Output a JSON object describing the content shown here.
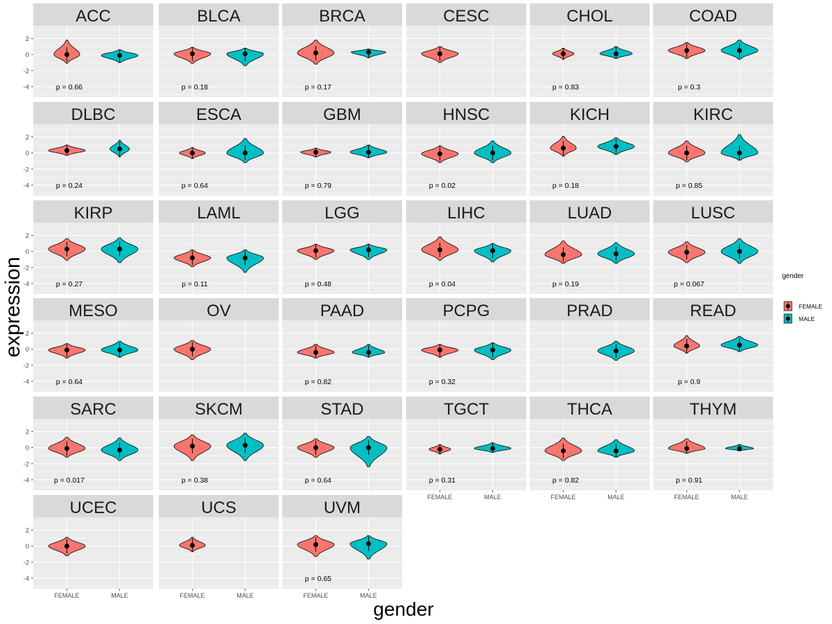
{
  "chart_data": {
    "type": "violin",
    "xlabel": "gender",
    "ylabel": "expression",
    "x_categories": [
      "FEMALE",
      "MALE"
    ],
    "y_ticks": [
      2,
      0,
      -2,
      -4
    ],
    "ylim": [
      -5.3,
      3.6
    ],
    "legend": {
      "title": "gender",
      "position": "right",
      "entries": [
        {
          "label": "FEMALE",
          "color": "#F8766D"
        },
        {
          "label": "MALE",
          "color": "#00BFC4"
        }
      ]
    },
    "colors": {
      "panel": "#EBEBEB",
      "strip": "#D9D9D9",
      "grid": "#FFFFFF",
      "point": "#000000",
      "outline": "#000000"
    },
    "panels": [
      {
        "name": "ACC",
        "p": "0.66",
        "groups": [
          {
            "g": "FEMALE",
            "median": 0.0,
            "min": -1.1,
            "max": 1.8,
            "w": 0.6
          },
          {
            "g": "MALE",
            "median": -0.1,
            "min": -1.0,
            "max": 0.6,
            "w": 0.85
          }
        ]
      },
      {
        "name": "BLCA",
        "p": "0.18",
        "groups": [
          {
            "g": "FEMALE",
            "median": 0.1,
            "min": -1.1,
            "max": 0.9,
            "w": 0.85
          },
          {
            "g": "MALE",
            "median": 0.1,
            "min": -1.4,
            "max": 0.8,
            "w": 0.85
          }
        ]
      },
      {
        "name": "BRCA",
        "p": "0.17",
        "groups": [
          {
            "g": "FEMALE",
            "median": 0.2,
            "min": -1.2,
            "max": 1.8,
            "w": 0.85
          },
          {
            "g": "MALE",
            "median": 0.3,
            "min": -0.4,
            "max": 0.7,
            "w": 0.8
          }
        ]
      },
      {
        "name": "CESC",
        "p": "",
        "groups": [
          {
            "g": "FEMALE",
            "median": 0.1,
            "min": -1.0,
            "max": 1.0,
            "w": 0.85
          }
        ]
      },
      {
        "name": "CHOL",
        "p": "0.83",
        "groups": [
          {
            "g": "FEMALE",
            "median": 0.1,
            "min": -0.6,
            "max": 0.8,
            "w": 0.5
          },
          {
            "g": "MALE",
            "median": 0.1,
            "min": -0.5,
            "max": 1.0,
            "w": 0.75
          }
        ]
      },
      {
        "name": "COAD",
        "p": "0.3",
        "groups": [
          {
            "g": "FEMALE",
            "median": 0.5,
            "min": -0.5,
            "max": 1.5,
            "w": 0.85
          },
          {
            "g": "MALE",
            "median": 0.5,
            "min": -0.6,
            "max": 1.8,
            "w": 0.85
          }
        ]
      },
      {
        "name": "DLBC",
        "p": "0.24",
        "groups": [
          {
            "g": "FEMALE",
            "median": 0.3,
            "min": -0.3,
            "max": 1.0,
            "w": 0.85
          },
          {
            "g": "MALE",
            "median": 0.5,
            "min": -0.5,
            "max": 1.6,
            "w": 0.45
          }
        ]
      },
      {
        "name": "ESCA",
        "p": "0.64",
        "groups": [
          {
            "g": "FEMALE",
            "median": 0.0,
            "min": -0.7,
            "max": 0.7,
            "w": 0.6
          },
          {
            "g": "MALE",
            "median": 0.0,
            "min": -1.2,
            "max": 1.8,
            "w": 0.85
          }
        ]
      },
      {
        "name": "GBM",
        "p": "0.79",
        "groups": [
          {
            "g": "FEMALE",
            "median": 0.1,
            "min": -0.5,
            "max": 0.6,
            "w": 0.7
          },
          {
            "g": "MALE",
            "median": 0.1,
            "min": -0.6,
            "max": 1.0,
            "w": 0.85
          }
        ]
      },
      {
        "name": "HNSC",
        "p": "0.02",
        "groups": [
          {
            "g": "FEMALE",
            "median": -0.1,
            "min": -1.2,
            "max": 0.9,
            "w": 0.85
          },
          {
            "g": "MALE",
            "median": 0.0,
            "min": -1.2,
            "max": 1.5,
            "w": 0.85
          }
        ]
      },
      {
        "name": "KICH",
        "p": "0.18",
        "groups": [
          {
            "g": "FEMALE",
            "median": 0.6,
            "min": -0.4,
            "max": 2.1,
            "w": 0.6
          },
          {
            "g": "MALE",
            "median": 0.8,
            "min": -0.2,
            "max": 1.9,
            "w": 0.85
          }
        ]
      },
      {
        "name": "KIRC",
        "p": "0.85",
        "groups": [
          {
            "g": "FEMALE",
            "median": 0.0,
            "min": -1.1,
            "max": 1.5,
            "w": 0.85
          },
          {
            "g": "MALE",
            "median": 0.0,
            "min": -0.9,
            "max": 2.3,
            "w": 0.85
          }
        ]
      },
      {
        "name": "KIRP",
        "p": "0.27",
        "groups": [
          {
            "g": "FEMALE",
            "median": 0.3,
            "min": -1.1,
            "max": 1.6,
            "w": 0.85
          },
          {
            "g": "MALE",
            "median": 0.3,
            "min": -1.4,
            "max": 1.7,
            "w": 0.85
          }
        ]
      },
      {
        "name": "LAML",
        "p": "0.11",
        "groups": [
          {
            "g": "FEMALE",
            "median": -0.8,
            "min": -1.9,
            "max": 0.2,
            "w": 0.85
          },
          {
            "g": "MALE",
            "median": -0.8,
            "min": -2.6,
            "max": 0.2,
            "w": 0.85
          }
        ]
      },
      {
        "name": "LGG",
        "p": "0.48",
        "groups": [
          {
            "g": "FEMALE",
            "median": 0.1,
            "min": -1.0,
            "max": 0.9,
            "w": 0.85
          },
          {
            "g": "MALE",
            "median": 0.2,
            "min": -1.0,
            "max": 0.9,
            "w": 0.85
          }
        ]
      },
      {
        "name": "LIHC",
        "p": "0.04",
        "groups": [
          {
            "g": "FEMALE",
            "median": 0.2,
            "min": -1.1,
            "max": 1.8,
            "w": 0.85
          },
          {
            "g": "MALE",
            "median": 0.1,
            "min": -1.3,
            "max": 1.0,
            "w": 0.85
          }
        ]
      },
      {
        "name": "LUAD",
        "p": "0.19",
        "groups": [
          {
            "g": "FEMALE",
            "median": -0.4,
            "min": -1.5,
            "max": 1.3,
            "w": 0.85
          },
          {
            "g": "MALE",
            "median": -0.3,
            "min": -1.5,
            "max": 1.1,
            "w": 0.85
          }
        ]
      },
      {
        "name": "LUSC",
        "p": "0.067",
        "groups": [
          {
            "g": "FEMALE",
            "median": -0.1,
            "min": -1.4,
            "max": 1.2,
            "w": 0.85
          },
          {
            "g": "MALE",
            "median": 0.0,
            "min": -1.5,
            "max": 1.6,
            "w": 0.85
          }
        ]
      },
      {
        "name": "MESO",
        "p": "0.64",
        "groups": [
          {
            "g": "FEMALE",
            "median": -0.1,
            "min": -1.1,
            "max": 0.7,
            "w": 0.85
          },
          {
            "g": "MALE",
            "median": -0.1,
            "min": -1.0,
            "max": 1.0,
            "w": 0.85
          }
        ]
      },
      {
        "name": "OV",
        "p": "",
        "groups": [
          {
            "g": "FEMALE",
            "median": 0.0,
            "min": -1.3,
            "max": 1.1,
            "w": 0.85
          }
        ]
      },
      {
        "name": "PAAD",
        "p": "0.82",
        "groups": [
          {
            "g": "FEMALE",
            "median": -0.4,
            "min": -1.1,
            "max": 0.6,
            "w": 0.85
          },
          {
            "g": "MALE",
            "median": -0.4,
            "min": -1.0,
            "max": 0.6,
            "w": 0.75
          }
        ]
      },
      {
        "name": "PCPG",
        "p": "0.32",
        "groups": [
          {
            "g": "FEMALE",
            "median": -0.1,
            "min": -1.0,
            "max": 0.6,
            "w": 0.85
          },
          {
            "g": "MALE",
            "median": -0.1,
            "min": -1.3,
            "max": 0.8,
            "w": 0.85
          }
        ]
      },
      {
        "name": "PRAD",
        "p": "",
        "groups": [
          {
            "g": "MALE",
            "median": -0.2,
            "min": -1.4,
            "max": 1.0,
            "w": 0.85
          }
        ]
      },
      {
        "name": "READ",
        "p": "0.9",
        "groups": [
          {
            "g": "FEMALE",
            "median": 0.4,
            "min": -0.5,
            "max": 1.7,
            "w": 0.6
          },
          {
            "g": "MALE",
            "median": 0.5,
            "min": -0.3,
            "max": 1.6,
            "w": 0.85
          }
        ]
      },
      {
        "name": "SARC",
        "p": "0.017",
        "groups": [
          {
            "g": "FEMALE",
            "median": -0.1,
            "min": -1.2,
            "max": 1.3,
            "w": 0.85
          },
          {
            "g": "MALE",
            "median": -0.3,
            "min": -1.6,
            "max": 1.2,
            "w": 0.85
          }
        ]
      },
      {
        "name": "SKCM",
        "p": "0.38",
        "groups": [
          {
            "g": "FEMALE",
            "median": 0.2,
            "min": -1.6,
            "max": 1.6,
            "w": 0.85
          },
          {
            "g": "MALE",
            "median": 0.3,
            "min": -1.6,
            "max": 1.8,
            "w": 0.85
          }
        ]
      },
      {
        "name": "STAD",
        "p": "0.64",
        "groups": [
          {
            "g": "FEMALE",
            "median": 0.0,
            "min": -1.2,
            "max": 1.1,
            "w": 0.85
          },
          {
            "g": "MALE",
            "median": 0.0,
            "min": -2.4,
            "max": 1.4,
            "w": 0.85
          }
        ]
      },
      {
        "name": "TGCT",
        "p": "0.31",
        "groups": [
          {
            "g": "FEMALE",
            "median": -0.2,
            "min": -0.8,
            "max": 0.4,
            "w": 0.5
          },
          {
            "g": "MALE",
            "median": -0.1,
            "min": -0.6,
            "max": 0.6,
            "w": 0.85
          }
        ]
      },
      {
        "name": "THCA",
        "p": "0.82",
        "groups": [
          {
            "g": "FEMALE",
            "median": -0.4,
            "min": -1.6,
            "max": 1.2,
            "w": 0.85
          },
          {
            "g": "MALE",
            "median": -0.4,
            "min": -1.2,
            "max": 1.0,
            "w": 0.85
          }
        ]
      },
      {
        "name": "THYM",
        "p": "0.91",
        "groups": [
          {
            "g": "FEMALE",
            "median": -0.1,
            "min": -0.7,
            "max": 1.1,
            "w": 0.85
          },
          {
            "g": "MALE",
            "median": -0.1,
            "min": -0.4,
            "max": 0.4,
            "w": 0.65
          }
        ]
      },
      {
        "name": "UCEC",
        "p": "",
        "groups": [
          {
            "g": "FEMALE",
            "median": 0.0,
            "min": -1.2,
            "max": 1.1,
            "w": 0.85
          }
        ]
      },
      {
        "name": "UCS",
        "p": "",
        "groups": [
          {
            "g": "FEMALE",
            "median": 0.1,
            "min": -0.7,
            "max": 1.1,
            "w": 0.6
          }
        ]
      },
      {
        "name": "UVM",
        "p": "0.65",
        "groups": [
          {
            "g": "FEMALE",
            "median": 0.2,
            "min": -1.3,
            "max": 1.3,
            "w": 0.85
          },
          {
            "g": "MALE",
            "median": 0.3,
            "min": -1.6,
            "max": 1.3,
            "w": 0.85
          }
        ]
      }
    ]
  }
}
